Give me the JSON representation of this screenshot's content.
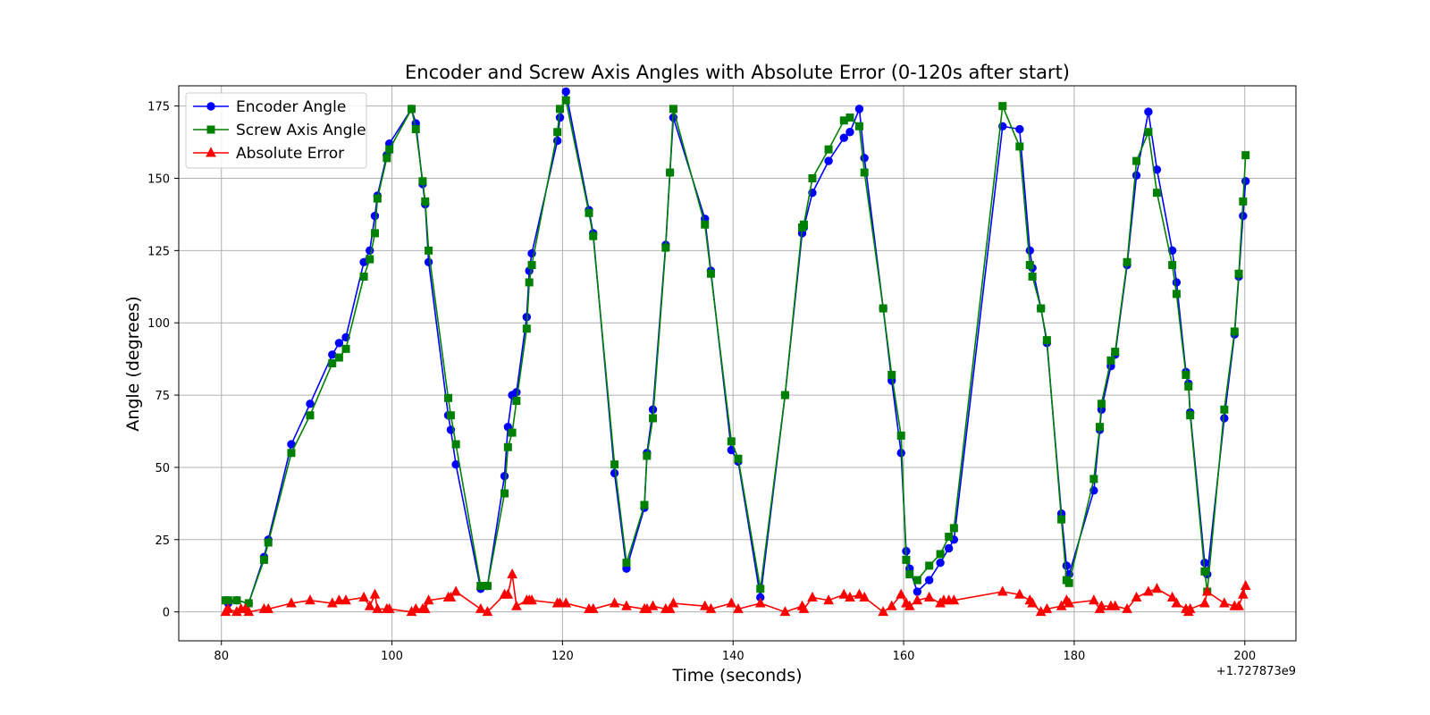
{
  "chart_data": {
    "type": "line",
    "title": "Encoder and Screw Axis Angles with Absolute Error (0-120s after start)",
    "xlabel": "Time (seconds)",
    "ylabel": "Angle (degrees)",
    "x_offset_label": "+1.727873e9",
    "xlim": [
      75,
      206
    ],
    "ylim": [
      -10,
      182
    ],
    "xticks": [
      80,
      100,
      120,
      140,
      160,
      180,
      200
    ],
    "yticks": [
      0,
      25,
      50,
      75,
      100,
      125,
      150,
      175
    ],
    "grid": true,
    "legend_position": "upper-left",
    "series": [
      {
        "name": "Encoder Angle",
        "color": "#0000ff",
        "marker": "circle",
        "points": [
          [
            80.5,
            4
          ],
          [
            80.8,
            3
          ],
          [
            81.8,
            4
          ],
          [
            83.2,
            3
          ],
          [
            85,
            19
          ],
          [
            85.5,
            25
          ],
          [
            88.2,
            58
          ],
          [
            90.4,
            72
          ],
          [
            93,
            89
          ],
          [
            93.8,
            93
          ],
          [
            94.6,
            95
          ],
          [
            96.7,
            121
          ],
          [
            97.4,
            125
          ],
          [
            98,
            137
          ],
          [
            98.3,
            144
          ],
          [
            99.4,
            158
          ],
          [
            99.7,
            162
          ],
          [
            102.3,
            174
          ],
          [
            102.8,
            169
          ],
          [
            103.6,
            148
          ],
          [
            103.9,
            141
          ],
          [
            104.3,
            121
          ],
          [
            106.6,
            68
          ],
          [
            106.9,
            63
          ],
          [
            107.5,
            51
          ],
          [
            110.4,
            8
          ],
          [
            111.2,
            9
          ],
          [
            113.2,
            47
          ],
          [
            113.6,
            64
          ],
          [
            114.1,
            75
          ],
          [
            114.6,
            76
          ],
          [
            115.8,
            102
          ],
          [
            116.1,
            118
          ],
          [
            116.4,
            124
          ],
          [
            119.4,
            163
          ],
          [
            119.7,
            171
          ],
          [
            120.4,
            180
          ],
          [
            123.1,
            139
          ],
          [
            123.6,
            131
          ],
          [
            126.1,
            48
          ],
          [
            127.5,
            15
          ],
          [
            129.6,
            36
          ],
          [
            129.9,
            55
          ],
          [
            130.6,
            70
          ],
          [
            132.1,
            127
          ],
          [
            132.6,
            152
          ],
          [
            133,
            171
          ],
          [
            136.7,
            136
          ],
          [
            137.4,
            118
          ],
          [
            139.8,
            56
          ],
          [
            140.6,
            52
          ],
          [
            143.2,
            5
          ],
          [
            146.1,
            75
          ],
          [
            148.1,
            131
          ],
          [
            148.3,
            133
          ],
          [
            149.3,
            145
          ],
          [
            151.2,
            156
          ],
          [
            153,
            164
          ],
          [
            153.7,
            166
          ],
          [
            154.8,
            174
          ],
          [
            155.4,
            157
          ],
          [
            157.6,
            105
          ],
          [
            158.6,
            80
          ],
          [
            159.7,
            55
          ],
          [
            160.3,
            21
          ],
          [
            160.7,
            15
          ],
          [
            161.6,
            7
          ],
          [
            163,
            11
          ],
          [
            164.3,
            17
          ],
          [
            165.3,
            22
          ],
          [
            165.9,
            25
          ],
          [
            171.6,
            168
          ],
          [
            173.6,
            167
          ],
          [
            174.8,
            125
          ],
          [
            175.1,
            119
          ],
          [
            176.1,
            105
          ],
          [
            176.8,
            93
          ],
          [
            178.5,
            34
          ],
          [
            179.1,
            16
          ],
          [
            179.4,
            13
          ],
          [
            182.3,
            42
          ],
          [
            183,
            63
          ],
          [
            183.2,
            70
          ],
          [
            184.3,
            85
          ],
          [
            184.8,
            89
          ],
          [
            186.2,
            120
          ],
          [
            187.3,
            151
          ],
          [
            188.7,
            173
          ],
          [
            189.7,
            153
          ],
          [
            191.5,
            125
          ],
          [
            192,
            114
          ],
          [
            193.1,
            83
          ],
          [
            193.4,
            79
          ],
          [
            193.6,
            69
          ],
          [
            195.3,
            17
          ],
          [
            195.6,
            13
          ],
          [
            197.6,
            67
          ],
          [
            198.8,
            96
          ],
          [
            199.3,
            116
          ],
          [
            199.8,
            137
          ],
          [
            200.1,
            149
          ]
        ]
      },
      {
        "name": "Screw Axis Angle",
        "color": "#008000",
        "marker": "square",
        "points": [
          [
            80.5,
            4
          ],
          [
            80.8,
            4
          ],
          [
            81.8,
            4
          ],
          [
            83.2,
            3
          ],
          [
            85,
            18
          ],
          [
            85.5,
            24
          ],
          [
            88.2,
            55
          ],
          [
            90.4,
            68
          ],
          [
            93,
            86
          ],
          [
            93.8,
            88
          ],
          [
            94.6,
            91
          ],
          [
            96.7,
            116
          ],
          [
            97.4,
            122
          ],
          [
            98,
            131
          ],
          [
            98.3,
            143
          ],
          [
            99.4,
            157
          ],
          [
            99.7,
            160
          ],
          [
            102.3,
            174
          ],
          [
            102.8,
            167
          ],
          [
            103.6,
            149
          ],
          [
            103.9,
            142
          ],
          [
            104.3,
            125
          ],
          [
            106.6,
            74
          ],
          [
            106.9,
            68
          ],
          [
            107.5,
            58
          ],
          [
            110.4,
            9
          ],
          [
            111.2,
            9
          ],
          [
            113.2,
            41
          ],
          [
            113.6,
            57
          ],
          [
            114.1,
            62
          ],
          [
            114.6,
            73
          ],
          [
            115.8,
            98
          ],
          [
            116.1,
            114
          ],
          [
            116.4,
            120
          ],
          [
            119.4,
            166
          ],
          [
            119.7,
            174
          ],
          [
            120.4,
            177
          ],
          [
            123.1,
            138
          ],
          [
            123.6,
            130
          ],
          [
            126.1,
            51
          ],
          [
            127.5,
            17
          ],
          [
            129.6,
            37
          ],
          [
            129.9,
            54
          ],
          [
            130.6,
            67
          ],
          [
            132.1,
            126
          ],
          [
            132.6,
            152
          ],
          [
            133,
            174
          ],
          [
            136.7,
            134
          ],
          [
            137.4,
            117
          ],
          [
            139.8,
            59
          ],
          [
            140.6,
            53
          ],
          [
            143.2,
            8
          ],
          [
            146.1,
            75
          ],
          [
            148.1,
            133
          ],
          [
            148.3,
            134
          ],
          [
            149.3,
            150
          ],
          [
            151.2,
            160
          ],
          [
            153,
            170
          ],
          [
            153.7,
            171
          ],
          [
            154.8,
            168
          ],
          [
            155.4,
            152
          ],
          [
            157.6,
            105
          ],
          [
            158.6,
            82
          ],
          [
            159.7,
            61
          ],
          [
            160.3,
            18
          ],
          [
            160.7,
            13
          ],
          [
            161.6,
            11
          ],
          [
            163,
            16
          ],
          [
            164.3,
            20
          ],
          [
            165.3,
            26
          ],
          [
            165.9,
            29
          ],
          [
            171.6,
            175
          ],
          [
            173.6,
            161
          ],
          [
            174.8,
            120
          ],
          [
            175.1,
            116
          ],
          [
            176.1,
            105
          ],
          [
            176.8,
            94
          ],
          [
            178.5,
            32
          ],
          [
            179.1,
            11
          ],
          [
            179.4,
            10
          ],
          [
            182.3,
            46
          ],
          [
            183,
            64
          ],
          [
            183.2,
            72
          ],
          [
            184.3,
            87
          ],
          [
            184.8,
            90
          ],
          [
            186.2,
            121
          ],
          [
            187.3,
            156
          ],
          [
            188.7,
            166
          ],
          [
            189.7,
            145
          ],
          [
            191.5,
            120
          ],
          [
            192,
            110
          ],
          [
            193.1,
            82
          ],
          [
            193.4,
            78
          ],
          [
            193.6,
            68
          ],
          [
            195.3,
            14
          ],
          [
            195.6,
            7
          ],
          [
            197.6,
            70
          ],
          [
            198.8,
            97
          ],
          [
            199.3,
            117
          ],
          [
            199.8,
            142
          ],
          [
            200.1,
            158
          ]
        ]
      },
      {
        "name": "Absolute Error",
        "color": "#ff0000",
        "marker": "triangle",
        "points": [
          [
            80.5,
            0
          ],
          [
            80.8,
            1
          ],
          [
            81.8,
            0
          ],
          [
            82.3,
            1
          ],
          [
            82.8,
            1
          ],
          [
            83.2,
            0
          ],
          [
            85,
            1
          ],
          [
            85.5,
            1
          ],
          [
            88.2,
            3
          ],
          [
            90.4,
            4
          ],
          [
            93,
            3
          ],
          [
            93.8,
            4
          ],
          [
            94.6,
            4
          ],
          [
            96.7,
            5
          ],
          [
            97.4,
            2
          ],
          [
            98,
            6
          ],
          [
            98.3,
            1
          ],
          [
            99.4,
            1
          ],
          [
            99.7,
            1
          ],
          [
            102.3,
            0
          ],
          [
            102.8,
            1
          ],
          [
            103.6,
            1
          ],
          [
            103.9,
            1
          ],
          [
            104.3,
            4
          ],
          [
            106.6,
            5
          ],
          [
            106.9,
            5
          ],
          [
            107.5,
            7
          ],
          [
            110.4,
            1
          ],
          [
            111.2,
            0
          ],
          [
            113.2,
            6
          ],
          [
            113.6,
            6
          ],
          [
            114.1,
            13
          ],
          [
            114.6,
            2
          ],
          [
            115.8,
            4
          ],
          [
            116.1,
            4
          ],
          [
            116.4,
            4
          ],
          [
            119.4,
            3
          ],
          [
            119.7,
            3
          ],
          [
            120.4,
            3
          ],
          [
            123.1,
            1
          ],
          [
            123.6,
            1
          ],
          [
            126.1,
            3
          ],
          [
            127.5,
            2
          ],
          [
            129.6,
            1
          ],
          [
            129.9,
            1
          ],
          [
            130.6,
            2
          ],
          [
            132.1,
            1
          ],
          [
            132.6,
            1
          ],
          [
            133,
            3
          ],
          [
            136.7,
            2
          ],
          [
            137.4,
            1
          ],
          [
            139.8,
            3
          ],
          [
            140.6,
            1
          ],
          [
            143.2,
            3
          ],
          [
            146.1,
            0
          ],
          [
            148.1,
            2
          ],
          [
            148.3,
            1
          ],
          [
            149.3,
            5
          ],
          [
            151.2,
            4
          ],
          [
            153,
            6
          ],
          [
            153.7,
            5
          ],
          [
            154.8,
            6
          ],
          [
            155.4,
            5
          ],
          [
            157.6,
            0
          ],
          [
            158.6,
            2
          ],
          [
            159.7,
            6
          ],
          [
            160.3,
            3
          ],
          [
            160.7,
            2
          ],
          [
            161.6,
            4
          ],
          [
            163,
            5
          ],
          [
            164.3,
            3
          ],
          [
            164.7,
            4
          ],
          [
            165.3,
            4
          ],
          [
            165.9,
            4
          ],
          [
            171.6,
            7
          ],
          [
            173.6,
            6
          ],
          [
            174.8,
            4
          ],
          [
            175.1,
            3
          ],
          [
            176.1,
            0
          ],
          [
            176.8,
            1
          ],
          [
            178.5,
            2
          ],
          [
            179.1,
            4
          ],
          [
            179.4,
            3
          ],
          [
            182.3,
            4
          ],
          [
            183,
            1
          ],
          [
            183.2,
            2
          ],
          [
            184.3,
            2
          ],
          [
            184.8,
            2
          ],
          [
            186.2,
            1
          ],
          [
            187.3,
            5
          ],
          [
            188.7,
            7
          ],
          [
            189.7,
            8
          ],
          [
            191.5,
            5
          ],
          [
            192,
            3
          ],
          [
            193.1,
            1
          ],
          [
            193.4,
            0
          ],
          [
            193.6,
            1
          ],
          [
            195.3,
            3
          ],
          [
            195.6,
            7
          ],
          [
            197.6,
            3
          ],
          [
            198.8,
            2
          ],
          [
            199.3,
            2
          ],
          [
            199.8,
            6
          ],
          [
            200.1,
            9
          ]
        ]
      }
    ]
  }
}
